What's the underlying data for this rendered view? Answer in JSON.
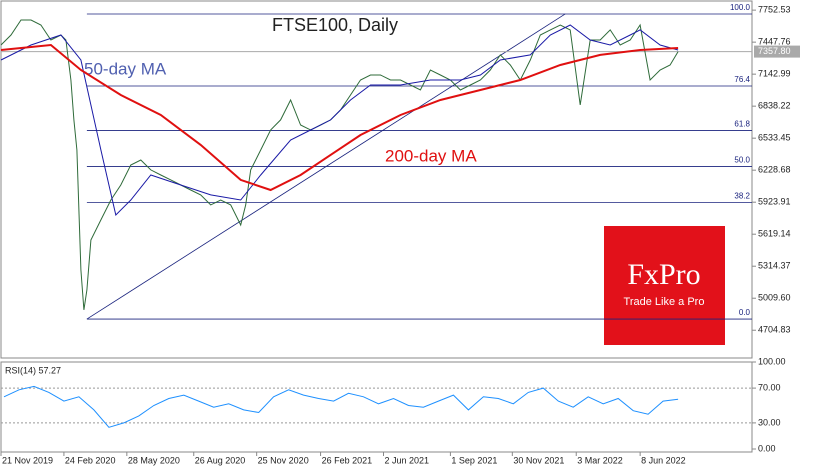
{
  "chart_data": [
    {
      "type": "line",
      "title": "FTSE100, Daily",
      "xlim": [
        0,
        752
      ],
      "xticks": [
        {
          "value": 0,
          "label": "21 Nov 2019"
        },
        {
          "value": 63,
          "label": "24 Feb 2020"
        },
        {
          "value": 126,
          "label": "28 May 2020"
        },
        {
          "value": 193,
          "label": "26 Aug 2020"
        },
        {
          "value": 256,
          "label": "25 Nov 2020"
        },
        {
          "value": 320,
          "label": "26 Feb 2021"
        },
        {
          "value": 383,
          "label": "2 Jun 2021"
        },
        {
          "value": 450,
          "label": "1 Sep 2021"
        },
        {
          "value": 512,
          "label": "30 Nov 2021"
        },
        {
          "value": 576,
          "label": "3 Mar 2022"
        },
        {
          "value": 640,
          "label": "8 Jun 2022"
        }
      ],
      "ylim": [
        4450,
        7830
      ],
      "yticks": [
        7752.53,
        7447.76,
        7142.99,
        6838.22,
        6533.45,
        6228.68,
        5923.91,
        5619.14,
        5314.37,
        {
          "value": 5009.6,
          "label": "5009.60"
        },
        4704.83
      ],
      "series": [
        {
          "color": "#2f6b3a",
          "x": [
            0,
            10,
            20,
            30,
            40,
            50,
            60,
            65,
            70,
            73,
            76,
            78,
            80,
            83,
            86,
            90,
            100,
            110,
            120,
            130,
            140,
            150,
            160,
            170,
            180,
            190,
            200,
            210,
            220,
            230,
            240,
            245,
            250,
            260,
            270,
            280,
            290,
            300,
            310,
            320,
            330,
            340,
            350,
            360,
            370,
            380,
            390,
            400,
            410,
            420,
            430,
            440,
            450,
            460,
            470,
            480,
            490,
            500,
            510,
            520,
            530,
            540,
            550,
            560,
            570,
            580,
            590,
            600,
            610,
            620,
            630,
            640,
            650,
            660,
            670,
            678
          ],
          "values": [
            7421,
            7516,
            7659,
            7659,
            7611,
            7468,
            7516,
            7468,
            7087,
            6707,
            6421,
            5850,
            5279,
            4898,
            5088,
            5564,
            5755,
            5945,
            6088,
            6278,
            6326,
            6231,
            6183,
            6136,
            6088,
            6040,
            5993,
            5898,
            5945,
            5898,
            5707,
            5898,
            6231,
            6421,
            6611,
            6707,
            6897,
            6659,
            6611,
            6659,
            6707,
            6802,
            6945,
            7087,
            7135,
            7135,
            7087,
            7087,
            7040,
            6992,
            7183,
            7135,
            7087,
            6992,
            7040,
            7087,
            7183,
            7326,
            7230,
            7087,
            7278,
            7516,
            7564,
            7611,
            7564,
            6850,
            7468,
            7468,
            7564,
            7421,
            7468,
            7611,
            7087,
            7183,
            7230,
            7358
          ]
        },
        {
          "name": "50-day MA",
          "color": "#1a1aa6",
          "x": [
            0,
            30,
            60,
            80,
            100,
            115,
            130,
            150,
            180,
            210,
            240,
            260,
            290,
            310,
            330,
            350,
            370,
            400,
            430,
            460,
            480,
            500,
            530,
            550,
            570,
            590,
            610,
            630,
            640,
            660,
            678
          ],
          "values": [
            7278,
            7421,
            7516,
            7278,
            6421,
            5802,
            5945,
            6183,
            6088,
            5993,
            5945,
            6183,
            6516,
            6611,
            6707,
            6897,
            7040,
            7040,
            7087,
            7087,
            7135,
            7278,
            7326,
            7516,
            7611,
            7468,
            7421,
            7516,
            7564,
            7421,
            7373
          ]
        },
        {
          "name": "200-day MA",
          "color": "#e01010",
          "x": [
            0,
            50,
            80,
            120,
            160,
            200,
            240,
            270,
            300,
            330,
            360,
            400,
            440,
            480,
            520,
            560,
            600,
            640,
            678
          ],
          "values": [
            7373,
            7421,
            7183,
            6945,
            6754,
            6469,
            6136,
            6040,
            6183,
            6374,
            6564,
            6754,
            6897,
            6992,
            7087,
            7230,
            7326,
            7373,
            7392
          ]
        }
      ],
      "last_price": {
        "value": 7357.8,
        "label": "7357.80"
      },
      "fib_levels": [
        {
          "level": "100.0",
          "value": 7716
        },
        {
          "level": "76.4",
          "value": 7030
        },
        {
          "level": "61.8",
          "value": 6606
        },
        {
          "level": "50.0",
          "value": 6263
        },
        {
          "level": "38.2",
          "value": 5921
        },
        {
          "level": "0.0",
          "value": 4811
        }
      ],
      "trendline": {
        "x": [
          86,
          565
        ],
        "values": [
          4811,
          7716
        ]
      }
    },
    {
      "type": "line",
      "title": "RSI(14) 57.27",
      "xlim": [
        0,
        752
      ],
      "ylim": [
        0,
        100
      ],
      "yticks": [
        {
          "value": 100,
          "label": "100.00"
        },
        {
          "value": 70,
          "label": "70.00"
        },
        {
          "value": 30,
          "label": "30.00"
        },
        {
          "value": 0,
          "label": "0.00"
        }
      ],
      "grid_levels": [
        70,
        30
      ],
      "series": [
        {
          "color": "#1e90ff",
          "x": [
            3,
            18,
            33,
            48,
            63,
            78,
            93,
            108,
            123,
            138,
            153,
            168,
            183,
            198,
            213,
            228,
            243,
            258,
            273,
            288,
            303,
            318,
            333,
            348,
            363,
            378,
            393,
            408,
            423,
            438,
            453,
            468,
            483,
            498,
            513,
            528,
            543,
            558,
            573,
            588,
            603,
            618,
            633,
            648,
            663,
            678
          ],
          "values": [
            60,
            68,
            72,
            65,
            55,
            60,
            45,
            25,
            30,
            38,
            50,
            58,
            62,
            55,
            48,
            52,
            45,
            42,
            60,
            68,
            62,
            58,
            55,
            64,
            60,
            52,
            58,
            50,
            48,
            55,
            62,
            45,
            60,
            58,
            52,
            65,
            70,
            55,
            48,
            60,
            52,
            58,
            44,
            40,
            55,
            57.27
          ]
        }
      ]
    }
  ],
  "logo": {
    "brand": "FxPro",
    "tagline": "Trade Like a Pro"
  }
}
